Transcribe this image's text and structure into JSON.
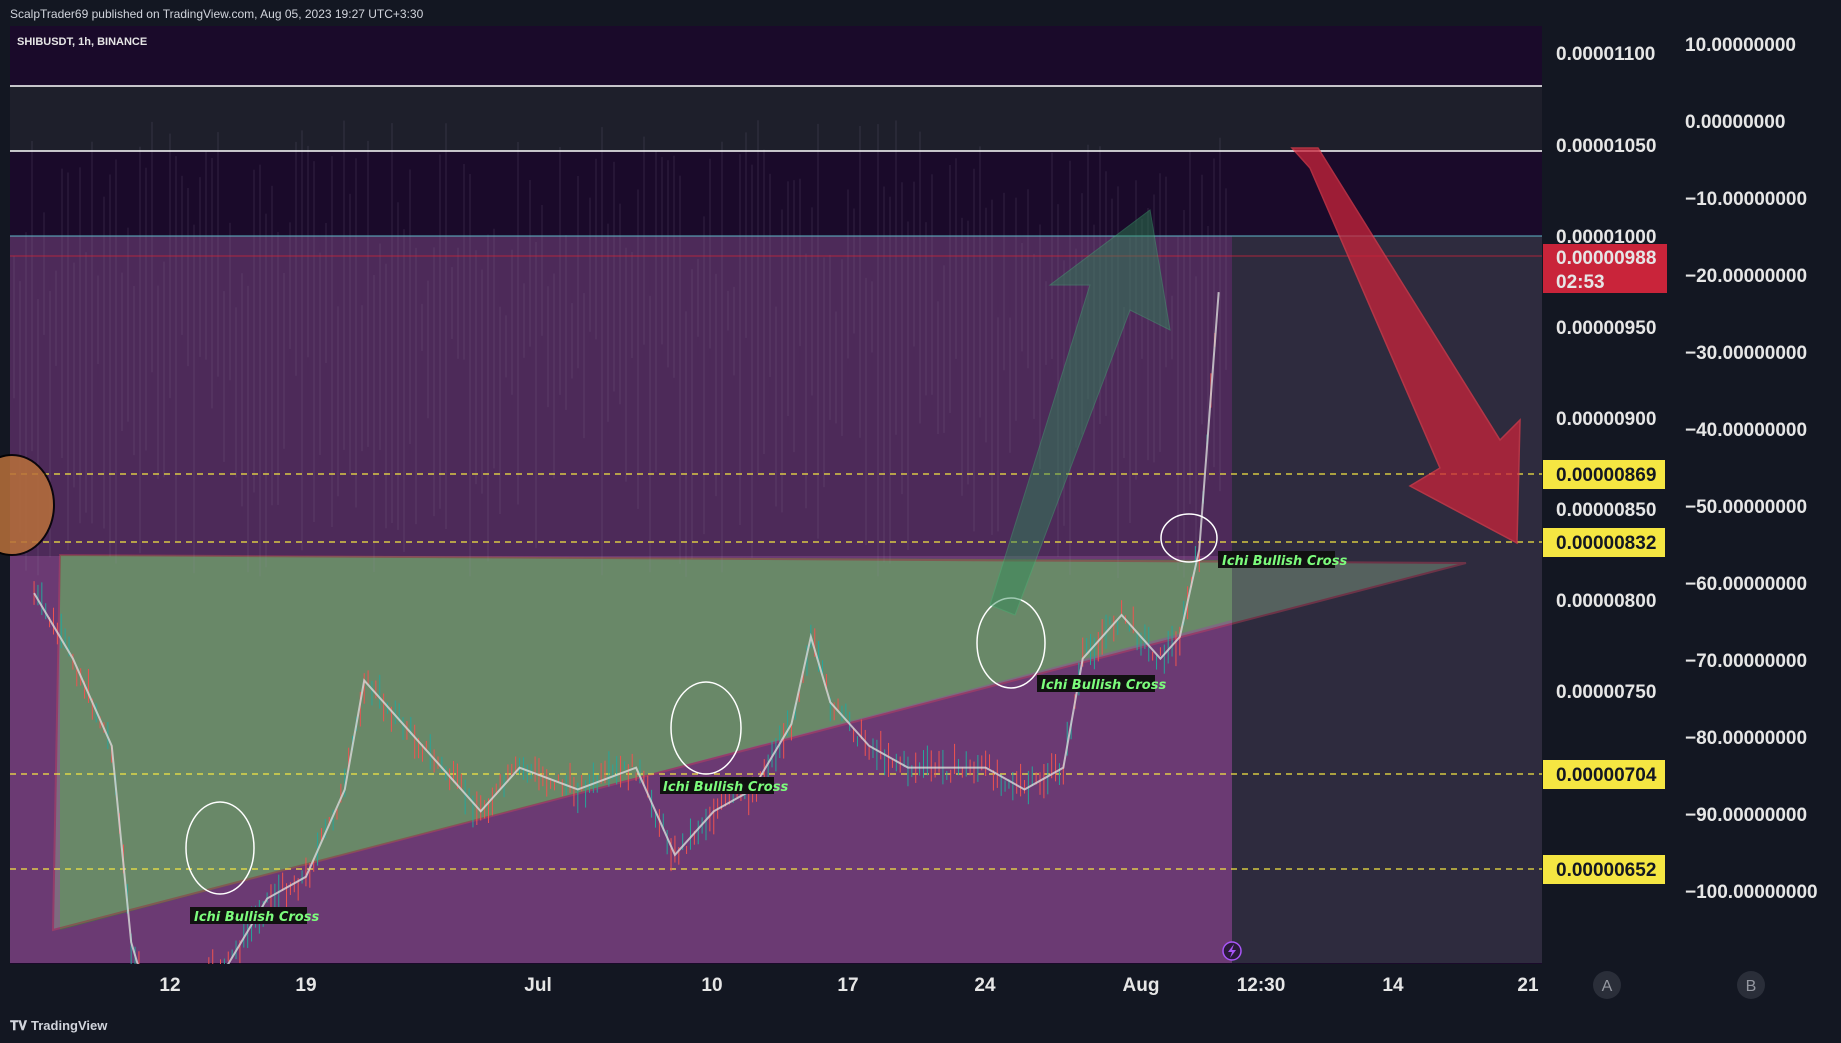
{
  "header": {
    "publisher": "ScalpTrader69 published on TradingView.com, Aug 05, 2023 19:27 UTC+3:30",
    "symbol": "SHIBUSDT, 1h, BINANCE"
  },
  "footer": {
    "logo": "TradingView"
  },
  "colors": {
    "background": "#131722",
    "pane_purple": "#1a0a2a",
    "pink_zone": "#8b3a8f",
    "green_zone": "#2e8b3e",
    "yellow_label": "#f5e642",
    "current_price_label": "#c9243a",
    "bullish_text": "#7CFC7C",
    "red_arrow": "#c9243a",
    "green_arrow": "#2e8b57"
  },
  "chart_data": {
    "type": "candlestick",
    "symbol": "SHIBUSDT",
    "interval": "1h",
    "exchange": "BINANCE",
    "price_axis": {
      "ticks": [
        "0.00001100",
        "0.00001050",
        "0.00001000",
        "0.00000950",
        "0.00000900",
        "0.00000850",
        "0.00000800",
        "0.00000750"
      ],
      "ylim": [
        6.8e-06,
        1.11e-05
      ]
    },
    "oscillator_axis": {
      "ticks": [
        "10.00000000",
        "0.00000000",
        "−10.00000000",
        "−20.00000000",
        "−30.00000000",
        "−40.00000000",
        "−50.00000000",
        "−60.00000000",
        "−70.00000000",
        "−80.00000000",
        "−90.00000000",
        "−100.00000000"
      ]
    },
    "time_axis": {
      "ticks": [
        "12",
        "19",
        "Jul",
        "10",
        "17",
        "24",
        "Aug",
        "12:30",
        "14",
        "21"
      ]
    },
    "current_price": {
      "value": "0.00000988",
      "countdown": "02:53"
    },
    "levels": [
      {
        "value": "0.00000869"
      },
      {
        "value": "0.00000832"
      },
      {
        "value": "0.00000704"
      },
      {
        "value": "0.00000652"
      }
    ],
    "horizontal_lines": [
      1.08e-05,
      1.05e-05,
      1e-05
    ],
    "annotations": [
      {
        "text": "Ichi Bullish Cross",
        "date": "Jun 14"
      },
      {
        "text": "Ichi Bullish Cross",
        "date": "Jul 10"
      },
      {
        "text": "Ichi Bullish Cross",
        "date": "Jul 26"
      },
      {
        "text": "Ichi Bullish Cross",
        "date": "Aug 03"
      }
    ],
    "triangle": {
      "resistance": 8.2e-06,
      "support_start": 6.6e-06,
      "support_end": 8.2e-06
    },
    "price_path": [
      {
        "x": "Jun 05",
        "y": 8.5e-06
      },
      {
        "x": "Jun 07",
        "y": 8.2e-06
      },
      {
        "x": "Jun 09",
        "y": 7.8e-06
      },
      {
        "x": "Jun 10",
        "y": 6.9e-06
      },
      {
        "x": "Jun 11",
        "y": 6.6e-06
      },
      {
        "x": "Jun 13",
        "y": 6.7e-06
      },
      {
        "x": "Jun 15",
        "y": 6.8e-06
      },
      {
        "x": "Jun 17",
        "y": 7.1e-06
      },
      {
        "x": "Jun 19",
        "y": 7.2e-06
      },
      {
        "x": "Jun 21",
        "y": 7.6e-06
      },
      {
        "x": "Jun 22",
        "y": 8.1e-06
      },
      {
        "x": "Jun 24",
        "y": 7.9e-06
      },
      {
        "x": "Jun 26",
        "y": 7.7e-06
      },
      {
        "x": "Jun 28",
        "y": 7.5e-06
      },
      {
        "x": "Jun 30",
        "y": 7.7e-06
      },
      {
        "x": "Jul 03",
        "y": 7.6e-06
      },
      {
        "x": "Jul 06",
        "y": 7.7e-06
      },
      {
        "x": "Jul 08",
        "y": 7.3e-06
      },
      {
        "x": "Jul 10",
        "y": 7.5e-06
      },
      {
        "x": "Jul 12",
        "y": 7.6e-06
      },
      {
        "x": "Jul 14",
        "y": 7.9e-06
      },
      {
        "x": "Jul 15",
        "y": 8.3e-06
      },
      {
        "x": "Jul 16",
        "y": 8e-06
      },
      {
        "x": "Jul 18",
        "y": 7.8e-06
      },
      {
        "x": "Jul 20",
        "y": 7.7e-06
      },
      {
        "x": "Jul 22",
        "y": 7.7e-06
      },
      {
        "x": "Jul 24",
        "y": 7.7e-06
      },
      {
        "x": "Jul 26",
        "y": 7.6e-06
      },
      {
        "x": "Jul 28",
        "y": 7.7e-06
      },
      {
        "x": "Jul 29",
        "y": 8.2e-06
      },
      {
        "x": "Jul 31",
        "y": 8.4e-06
      },
      {
        "x": "Aug 01",
        "y": 8.3e-06
      },
      {
        "x": "Aug 02",
        "y": 8.2e-06
      },
      {
        "x": "Aug 03",
        "y": 8.3e-06
      },
      {
        "x": "Aug 04",
        "y": 8.7e-06
      },
      {
        "x": "Aug 05",
        "y": 9.88e-06
      }
    ],
    "grid": false
  }
}
